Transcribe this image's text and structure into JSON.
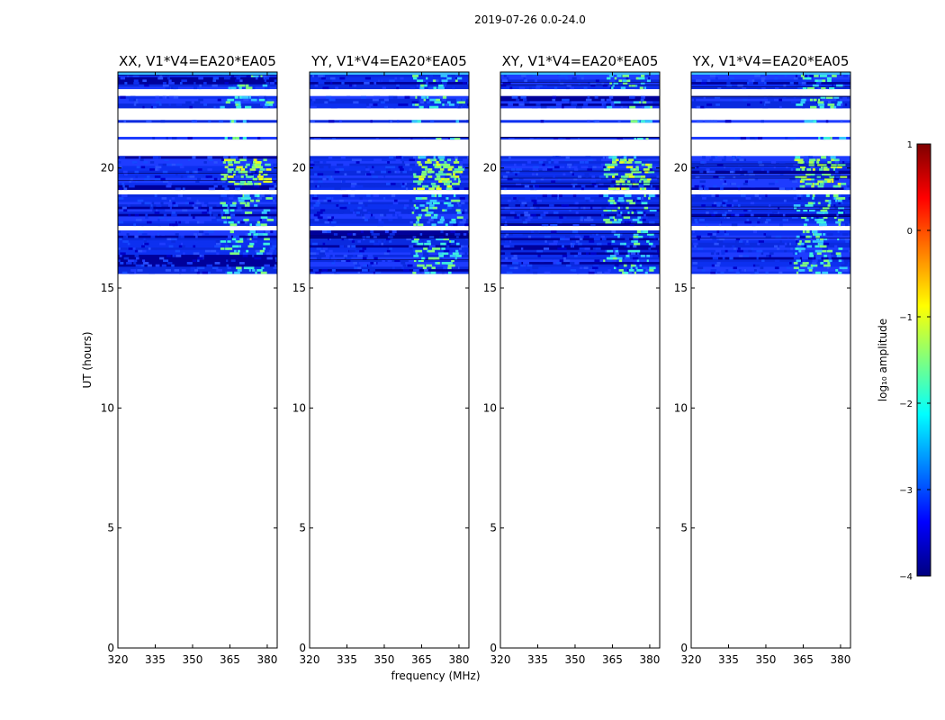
{
  "suptitle": "2019-07-26 0.0-24.0",
  "chart_data": {
    "type": "heatmap",
    "shared": {
      "xlabel": "frequency (MHz)",
      "ylabel": "UT (hours)",
      "xlim": [
        320,
        384
      ],
      "ylim": [
        0,
        24
      ],
      "xticks": [
        320,
        335,
        350,
        365,
        380
      ],
      "yticks": [
        0,
        5,
        10,
        15,
        20
      ]
    },
    "panels": [
      {
        "title": "XX, V1*V4=EA20*EA05",
        "polarization": "XX"
      },
      {
        "title": "YY, V1*V4=EA20*EA05",
        "polarization": "YY"
      },
      {
        "title": "XY, V1*V4=EA20*EA05",
        "polarization": "XY"
      },
      {
        "title": "YX, V1*V4=EA20*EA05",
        "polarization": "YX"
      }
    ],
    "data_time_range_hours": [
      15.6,
      24.0
    ],
    "blank_gaps_hours": [
      [
        23.0,
        23.3
      ],
      [
        22.0,
        22.5
      ],
      [
        21.3,
        21.9
      ],
      [
        20.5,
        21.2
      ],
      [
        18.9,
        19.1
      ],
      [
        17.4,
        17.6
      ]
    ],
    "bright_band_mhz": [
      361,
      380
    ],
    "colorbar": {
      "label": "log₁₀ amplitude",
      "vmin": -4,
      "vmax": 1,
      "ticks": [
        -4,
        -3,
        -2,
        -1,
        0,
        1
      ],
      "colormap": "jet"
    }
  },
  "colors": {
    "jet_stops": [
      "#00007f",
      "#0000ff",
      "#007fff",
      "#00ffff",
      "#7fff7f",
      "#ffff00",
      "#ff7f00",
      "#ff0000",
      "#7f0000"
    ]
  }
}
